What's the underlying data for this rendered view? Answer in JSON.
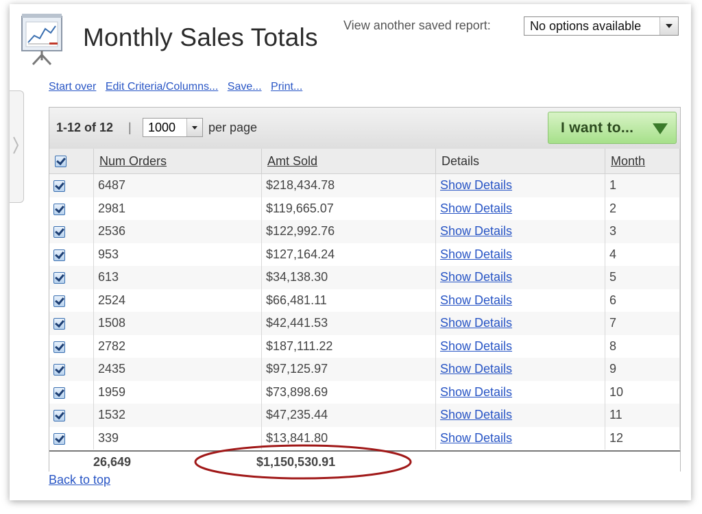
{
  "header": {
    "title": "Monthly Sales Totals",
    "saved_report_label": "View another saved report:",
    "saved_report_value": "No options available"
  },
  "actions": {
    "start_over": "Start over",
    "edit_criteria": "Edit Criteria/Columns...",
    "save": "Save...",
    "print": "Print..."
  },
  "toolbar": {
    "range": "1-12 of 12",
    "separator": "|",
    "per_page_value": "1000",
    "per_page_label": "per page",
    "i_want_to": "I want to..."
  },
  "columns": [
    "Num Orders",
    "Amt Sold",
    "Details",
    "Month"
  ],
  "rows": [
    {
      "orders": "6487",
      "amt": "$218,434.78",
      "details": "Show Details",
      "month": "1"
    },
    {
      "orders": "2981",
      "amt": "$119,665.07",
      "details": "Show Details",
      "month": "2"
    },
    {
      "orders": "2536",
      "amt": "$122,992.76",
      "details": "Show Details",
      "month": "3"
    },
    {
      "orders": "953",
      "amt": "$127,164.24",
      "details": "Show Details",
      "month": "4"
    },
    {
      "orders": "613",
      "amt": "$34,138.30",
      "details": "Show Details",
      "month": "5"
    },
    {
      "orders": "2524",
      "amt": "$66,481.11",
      "details": "Show Details",
      "month": "6"
    },
    {
      "orders": "1508",
      "amt": "$42,441.53",
      "details": "Show Details",
      "month": "7"
    },
    {
      "orders": "2782",
      "amt": "$187,111.22",
      "details": "Show Details",
      "month": "8"
    },
    {
      "orders": "2435",
      "amt": "$97,125.97",
      "details": "Show Details",
      "month": "9"
    },
    {
      "orders": "1959",
      "amt": "$73,898.69",
      "details": "Show Details",
      "month": "10"
    },
    {
      "orders": "1532",
      "amt": "$47,235.44",
      "details": "Show Details",
      "month": "11"
    },
    {
      "orders": "339",
      "amt": "$13,841.80",
      "details": "Show Details",
      "month": "12"
    }
  ],
  "totals": {
    "orders": "26,649",
    "amt": "$1,150,530.91"
  },
  "footer": {
    "back_to_top": "Back to top"
  },
  "icons": {
    "report": "presentation-chart-icon",
    "checkbox": "checkbox-checked-icon",
    "dropdown": "chevron-down-icon"
  },
  "colors": {
    "link": "#2855c5",
    "want_button": "#a6e08a",
    "annotation": "#a01818"
  }
}
